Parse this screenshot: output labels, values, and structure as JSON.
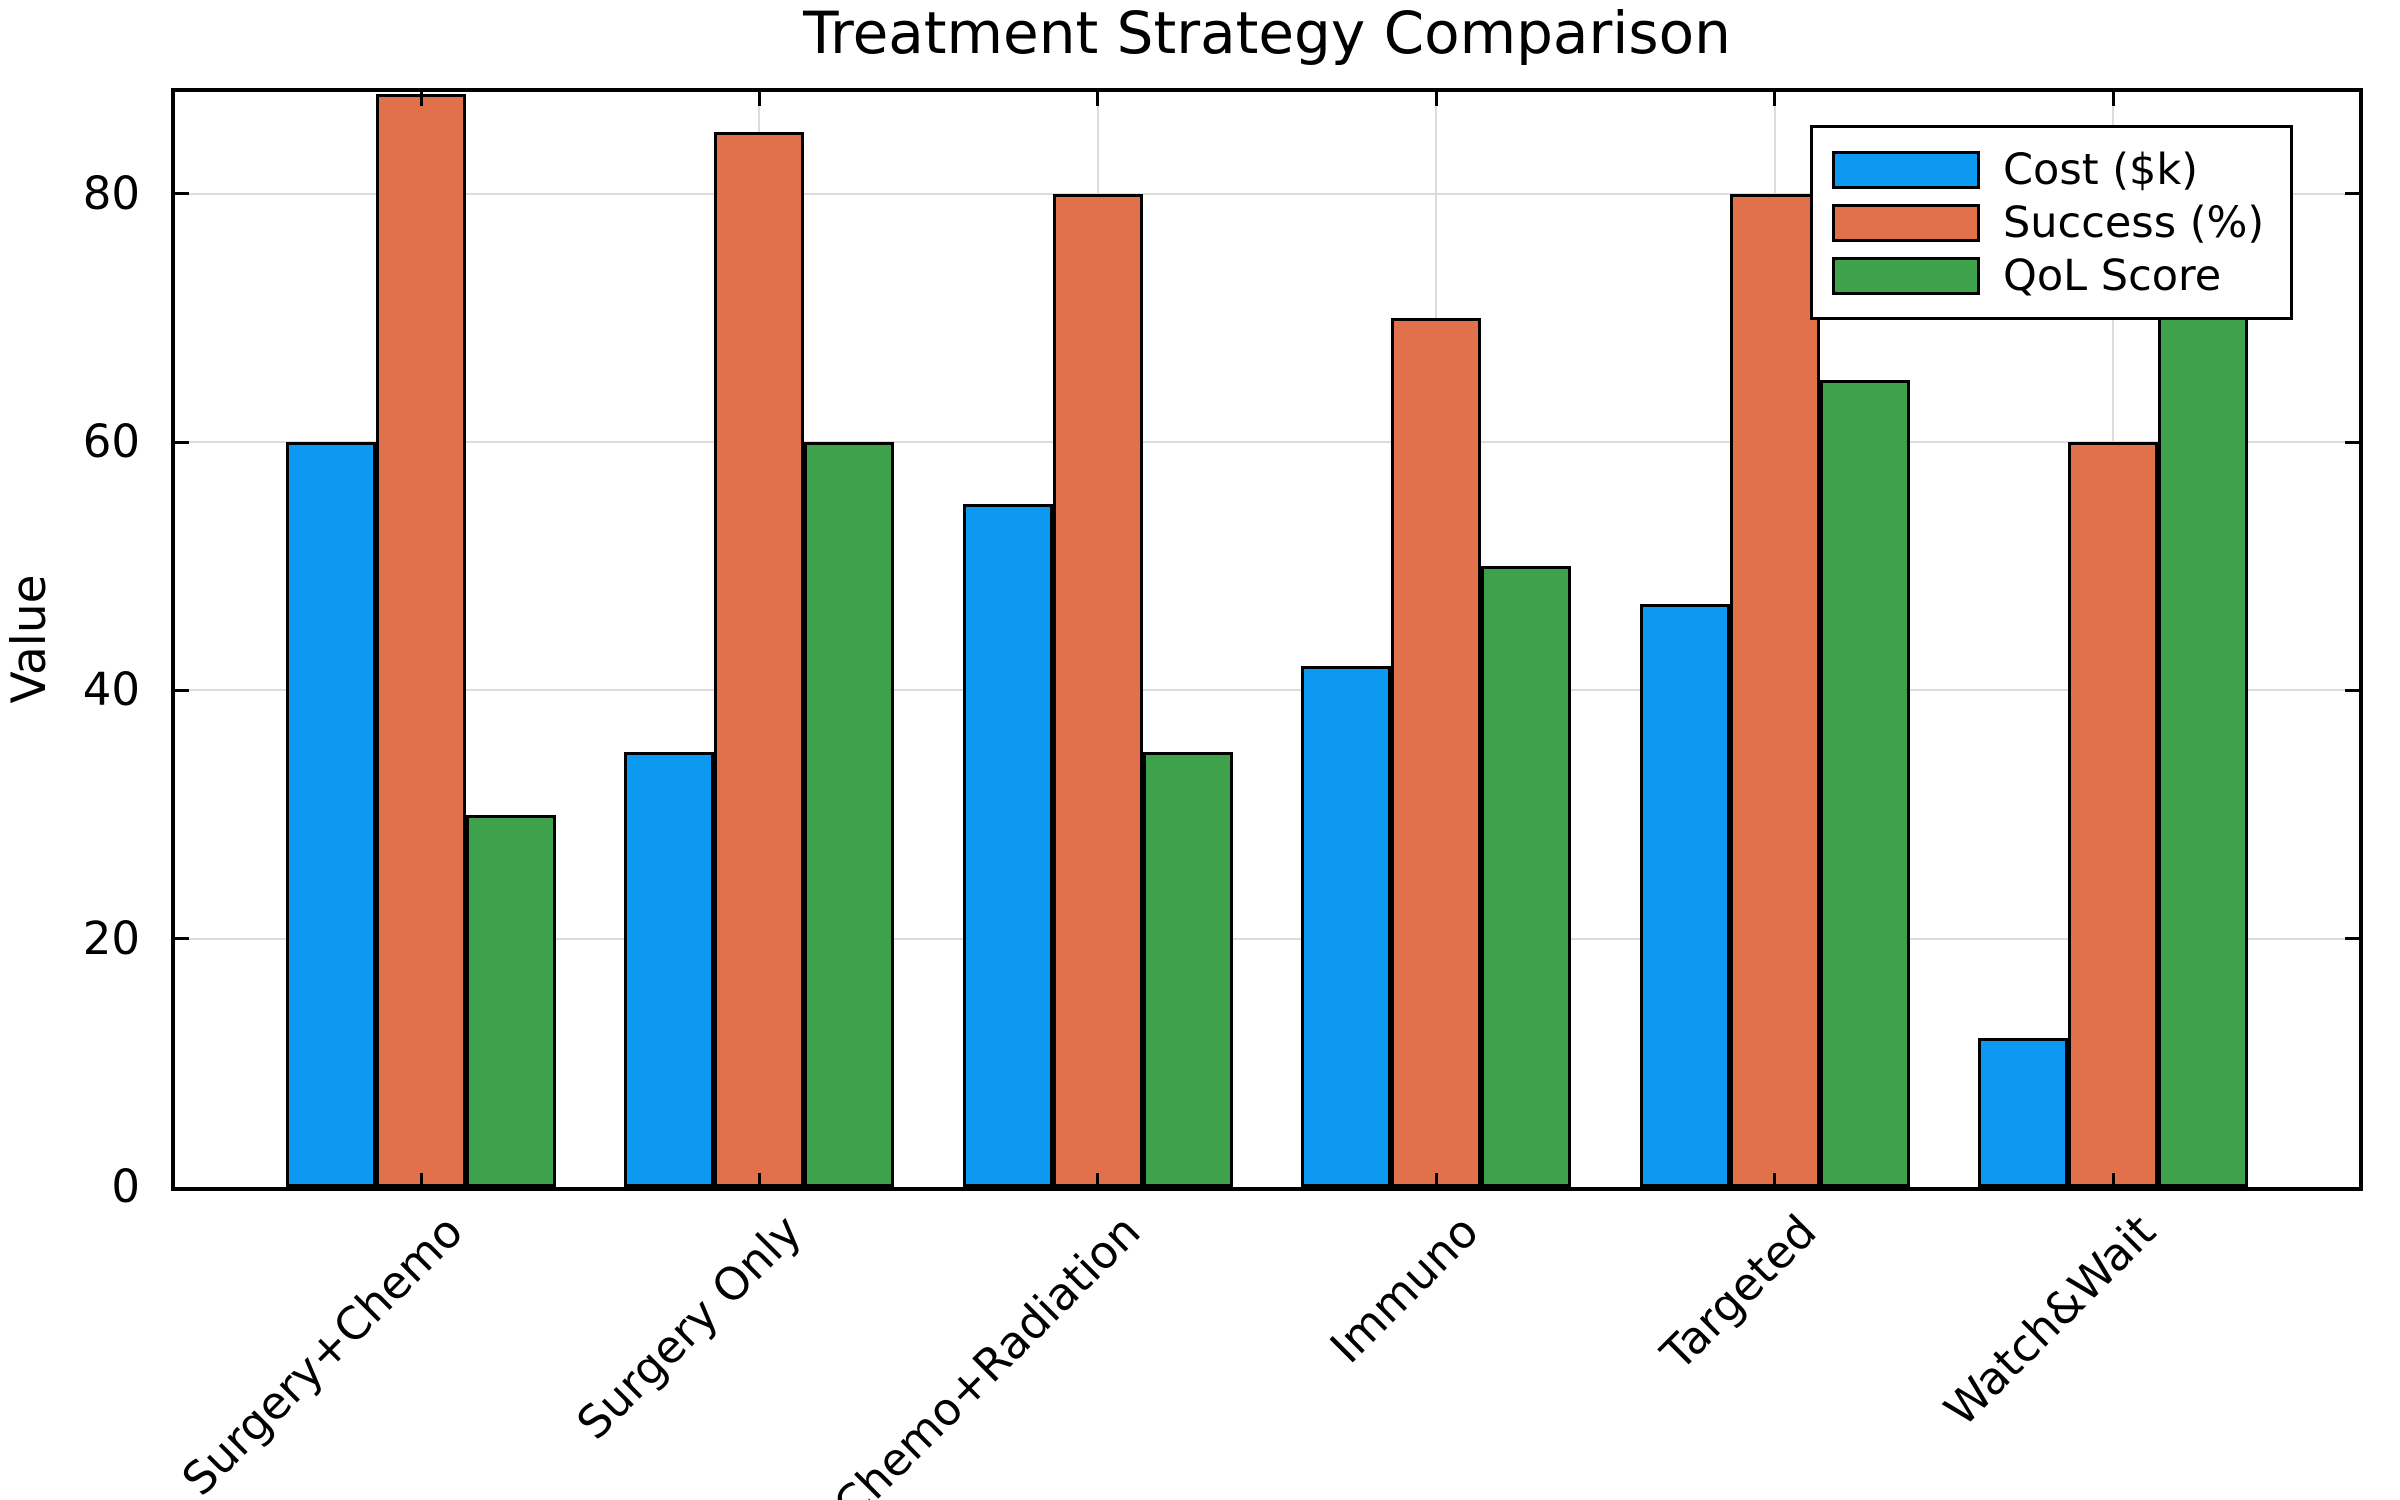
{
  "title": "Treatment Strategy Comparison",
  "colors": {
    "background": "#ffffff",
    "bar_edge": "#000000",
    "grid": "#dcdcdc",
    "blue": "#0d98f2",
    "orange": "#e0714b",
    "green": "#3da24b"
  },
  "chart_data": {
    "type": "bar",
    "title": "Treatment Strategy Comparison",
    "xlabel": "",
    "ylabel": "Value",
    "categories": [
      "Surgery+Chemo",
      "Surgery Only",
      "Chemo+Radiation",
      "Immuno",
      "Targeted",
      "Watch&Wait"
    ],
    "series": [
      {
        "name": "Cost ($k)",
        "color": "#0d98f2",
        "values": [
          60,
          35,
          55,
          42,
          47,
          12
        ]
      },
      {
        "name": "Success (%)",
        "color": "#e0714b",
        "values": [
          88,
          85,
          80,
          70,
          80,
          60
        ]
      },
      {
        "name": "QoL Score",
        "color": "#3da24b",
        "values": [
          30,
          60,
          35,
          50,
          65,
          75
        ]
      }
    ],
    "ylim": [
      0,
      88.2
    ],
    "yticks": [
      0,
      20,
      40,
      60,
      80
    ],
    "grid": true,
    "tick_direction": "in",
    "legend_position": "upper right",
    "x_tick_label_rotation": 45
  }
}
